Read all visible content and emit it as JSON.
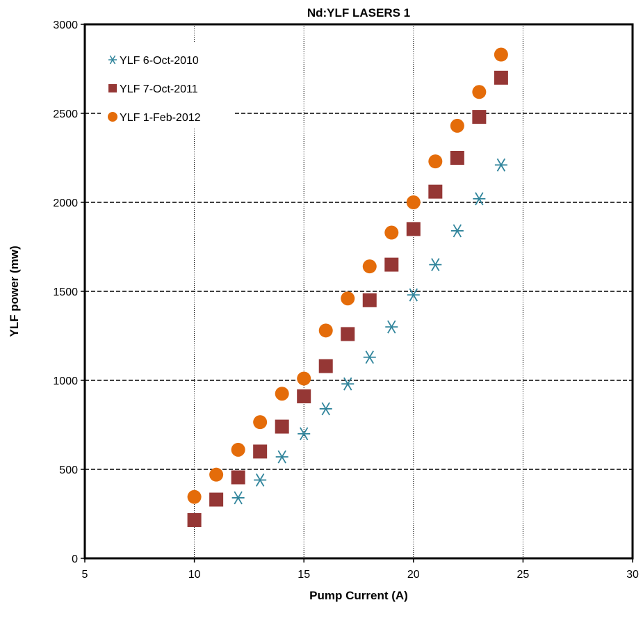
{
  "chart_data": {
    "type": "scatter",
    "title": "Nd:YLF LASERS 1",
    "xlabel": "Pump Current (A)",
    "ylabel": "YLF power (mw)",
    "xlim": [
      5,
      30
    ],
    "ylim": [
      0,
      3000
    ],
    "x_ticks": [
      "5",
      "10",
      "15",
      "20",
      "25",
      "30"
    ],
    "y_ticks": [
      "0",
      "500",
      "1000",
      "1500",
      "2000",
      "2500",
      "3000"
    ],
    "grid": {
      "x": "dotted",
      "y": "dashed"
    },
    "legend_position": "top-left",
    "series": [
      {
        "name": "YLF 6-Oct-2010",
        "marker": "asterisk",
        "color": "#31859C",
        "x": [
          12,
          13,
          14,
          15,
          16,
          17,
          18,
          19,
          20,
          21,
          22,
          23,
          24
        ],
        "y": [
          340,
          440,
          570,
          700,
          840,
          980,
          1130,
          1300,
          1480,
          1650,
          1840,
          2020,
          2210
        ]
      },
      {
        "name": "YLF 7-Oct-2011",
        "marker": "square",
        "color": "#953735",
        "x": [
          10,
          11,
          12,
          13,
          14,
          15,
          16,
          17,
          18,
          19,
          20,
          21,
          22,
          23,
          24
        ],
        "y": [
          215,
          330,
          455,
          600,
          740,
          910,
          1080,
          1260,
          1450,
          1650,
          1850,
          2060,
          2250,
          2480,
          2700
        ]
      },
      {
        "name": "YLF 1-Feb-2012",
        "marker": "circle",
        "color": "#E46C0A",
        "x": [
          10,
          11,
          12,
          13,
          14,
          15,
          16,
          17,
          18,
          19,
          20,
          21,
          22,
          23,
          24
        ],
        "y": [
          345,
          470,
          610,
          765,
          925,
          1010,
          1280,
          1460,
          1640,
          1830,
          2000,
          2230,
          2430,
          2620,
          2830
        ]
      }
    ]
  }
}
